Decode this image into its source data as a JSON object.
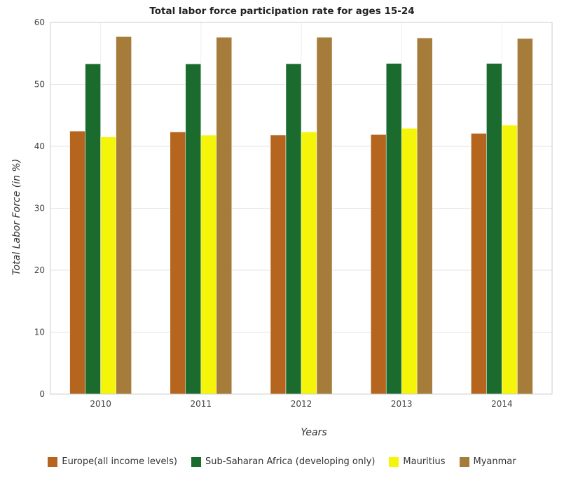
{
  "title": "Total labor force participation rate for ages 15-24",
  "chart_data": {
    "type": "bar",
    "categories": [
      "2010",
      "2011",
      "2012",
      "2013",
      "2014"
    ],
    "xlabel": "Years",
    "ylabel": "Total Labor Force (in %)",
    "ylim": [
      0,
      60
    ],
    "yticks": [
      0,
      10,
      20,
      30,
      40,
      50,
      60
    ],
    "grid": true,
    "legend_position": "bottom",
    "series": [
      {
        "name": "Europe(all income levels)",
        "color": "#b5651d",
        "values": [
          42.45,
          42.31,
          41.81,
          41.89,
          42.09
        ]
      },
      {
        "name": "Sub-Saharan Africa (developing only)",
        "color": "#1b6b2e",
        "values": [
          53.32,
          53.3,
          53.33,
          53.38,
          53.38
        ]
      },
      {
        "name": "Mauritius",
        "color": "#f5f50a",
        "values": [
          41.5,
          41.8,
          42.3,
          42.9,
          43.4
        ]
      },
      {
        "name": "Myanmar",
        "color": "#a57c3a",
        "values": [
          57.7,
          57.6,
          57.6,
          57.5,
          57.4
        ]
      }
    ]
  }
}
